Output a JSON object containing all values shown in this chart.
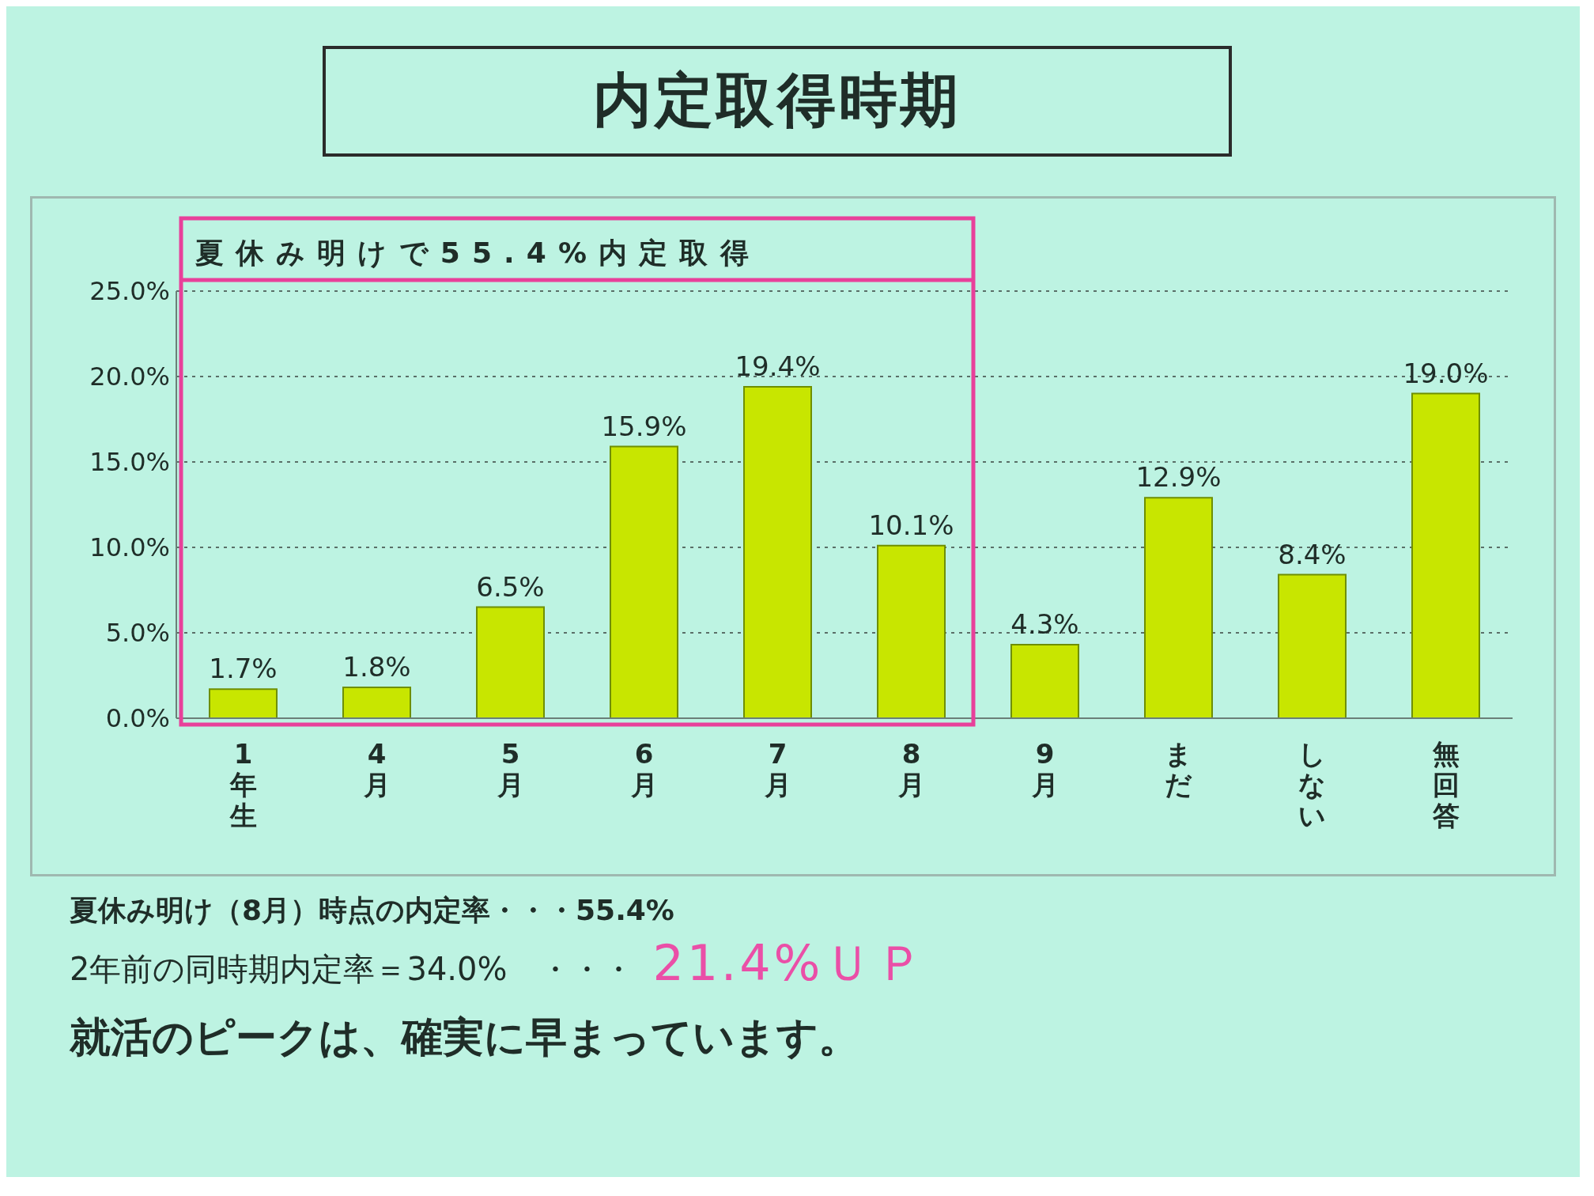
{
  "chart_data": {
    "type": "bar",
    "title": "内定取得時期",
    "categories": [
      "1年生",
      "4月",
      "5月",
      "6月",
      "7月",
      "8月",
      "9月",
      "まだ",
      "しない",
      "無回答"
    ],
    "values": [
      1.7,
      1.8,
      6.5,
      15.9,
      19.4,
      10.1,
      4.3,
      12.9,
      8.4,
      19.0
    ],
    "value_labels": [
      "1.7%",
      "1.8%",
      "6.5%",
      "15.9%",
      "19.4%",
      "10.1%",
      "4.3%",
      "12.9%",
      "8.4%",
      "19.0%"
    ],
    "color": "#c8e600",
    "ylim": [
      0,
      25
    ],
    "yticks": [
      {
        "value": 0,
        "label": "0.0%"
      },
      {
        "value": 5,
        "label": "5.0%"
      },
      {
        "value": 10,
        "label": "10.0%"
      },
      {
        "value": 15,
        "label": "15.0%"
      },
      {
        "value": 20,
        "label": "20.0%"
      },
      {
        "value": 25,
        "label": "25.0%"
      }
    ],
    "grid": "y",
    "annotations": [
      "夏休み明けで55.4%内定取得",
      "夏休み明け（8月）時点の内定率・・・55.4%",
      "2年前の同時期内定率＝34.0%　・・・",
      "21.4%ＵＰ",
      "就活のピークは、確実に早まっています。"
    ]
  }
}
